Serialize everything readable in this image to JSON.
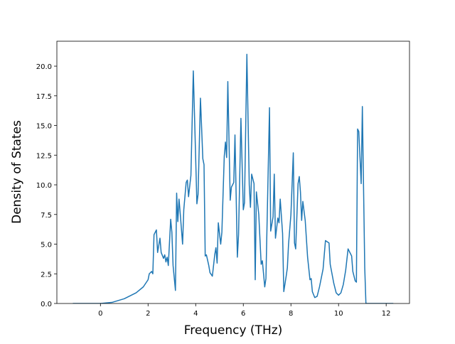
{
  "chart_data": {
    "type": "line",
    "x_label": "Frequency (THz)",
    "y_label": "Density of States",
    "color": "#1f77b4",
    "xlim": [
      -1.83,
      12.98
    ],
    "ylim": [
      0,
      22.1
    ],
    "xticks": [
      0,
      2,
      4,
      6,
      8,
      10,
      12
    ],
    "yticks": [
      {
        "value": 0,
        "label": "0.0"
      },
      {
        "value": 2.5,
        "label": "2.5"
      },
      {
        "value": 5,
        "label": "5.0"
      },
      {
        "value": 7.5,
        "label": "7.5"
      },
      {
        "value": 10,
        "label": "10.0"
      },
      {
        "value": 12.5,
        "label": "12.5"
      },
      {
        "value": 15,
        "label": "15.0"
      },
      {
        "value": 17.5,
        "label": "17.5"
      },
      {
        "value": 20,
        "label": "20.0"
      }
    ],
    "x": [
      -1.16,
      0,
      0.5,
      1.0,
      1.5,
      1.8,
      2.0,
      2.05,
      2.15,
      2.2,
      2.25,
      2.35,
      2.4,
      2.5,
      2.55,
      2.65,
      2.7,
      2.75,
      2.8,
      2.85,
      2.95,
      3.0,
      3.05,
      3.15,
      3.2,
      3.25,
      3.3,
      3.35,
      3.45,
      3.5,
      3.6,
      3.65,
      3.7,
      3.8,
      3.9,
      4.0,
      4.05,
      4.1,
      4.2,
      4.3,
      4.35,
      4.4,
      4.45,
      4.55,
      4.6,
      4.7,
      4.8,
      4.85,
      4.9,
      4.95,
      5.05,
      5.1,
      5.2,
      5.25,
      5.3,
      5.35,
      5.45,
      5.5,
      5.6,
      5.65,
      5.75,
      5.8,
      5.9,
      6.0,
      6.05,
      6.15,
      6.25,
      6.3,
      6.35,
      6.45,
      6.5,
      6.55,
      6.65,
      6.75,
      6.8,
      6.9,
      6.95,
      7.1,
      7.15,
      7.25,
      7.3,
      7.35,
      7.45,
      7.5,
      7.55,
      7.65,
      7.7,
      7.8,
      7.85,
      7.9,
      8.0,
      8.1,
      8.15,
      8.2,
      8.3,
      8.35,
      8.4,
      8.45,
      8.5,
      8.6,
      8.7,
      8.8,
      8.85,
      8.9,
      9.0,
      9.1,
      9.2,
      9.35,
      9.45,
      9.6,
      9.65,
      9.8,
      9.9,
      10.0,
      10.1,
      10.2,
      10.3,
      10.4,
      10.5,
      10.55,
      10.6,
      10.7,
      10.75,
      10.8,
      10.85,
      10.95,
      11.0,
      11.1,
      11.15,
      12.3
    ],
    "values": [
      0,
      0,
      0.1,
      0.4,
      0.9,
      1.4,
      2.0,
      2.5,
      2.7,
      2.5,
      5.8,
      6.2,
      4.3,
      5.5,
      4.3,
      3.8,
      4.1,
      3.5,
      3.9,
      3.2,
      7.1,
      6.0,
      3.2,
      1.1,
      9.3,
      6.9,
      8.8,
      7.6,
      5.0,
      7.9,
      10.2,
      10.4,
      9.0,
      10.8,
      19.6,
      12.2,
      8.4,
      9.2,
      17.3,
      12.2,
      11.7,
      4.0,
      4.1,
      3.2,
      2.6,
      2.3,
      4.1,
      4.7,
      3.4,
      6.8,
      5.0,
      6.0,
      12.4,
      13.6,
      12.3,
      18.7,
      8.7,
      9.8,
      10.2,
      14.2,
      3.9,
      5.8,
      15.6,
      7.9,
      8.5,
      21.0,
      10.0,
      8.1,
      10.9,
      10.1,
      2.0,
      9.4,
      7.5,
      3.3,
      3.6,
      1.4,
      2.1,
      16.5,
      6.1,
      7.3,
      10.9,
      5.5,
      7.2,
      6.8,
      8.8,
      5.9,
      1.0,
      2.3,
      3.0,
      5.0,
      7.5,
      12.7,
      5.1,
      4.6,
      10.1,
      10.7,
      9.4,
      7.0,
      8.6,
      7.0,
      3.9,
      2.0,
      2.1,
      1.0,
      0.5,
      0.6,
      1.4,
      2.9,
      5.3,
      5.1,
      3.3,
      1.7,
      0.9,
      0.7,
      0.9,
      1.6,
      2.8,
      4.6,
      4.2,
      4.0,
      2.7,
      1.9,
      1.8,
      14.7,
      14.5,
      10.1,
      16.6,
      3.0,
      0,
      0
    ]
  }
}
